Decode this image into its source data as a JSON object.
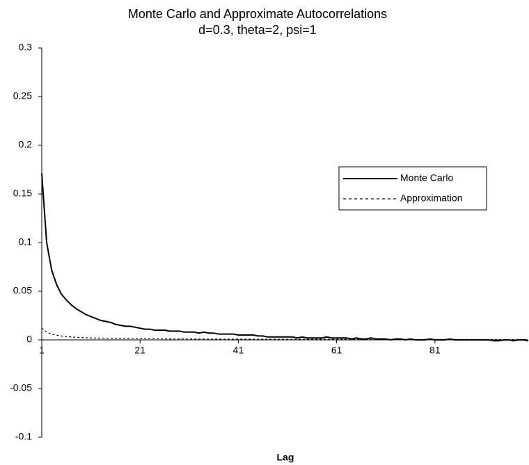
{
  "chart_data": {
    "type": "line",
    "title": "Monte Carlo and Approximate Autocorrelations",
    "subtitle": "d=0.3, theta=2, psi=1",
    "x_label": "Lag",
    "xlim": [
      1,
      100
    ],
    "xticks": [
      1,
      21,
      41,
      61,
      81
    ],
    "ylim": [
      -0.1,
      0.3
    ],
    "yticks": [
      0.3,
      0.25,
      0.2,
      0.15,
      0.1,
      0.05,
      0,
      -0.05,
      -0.1
    ],
    "grid": false,
    "legend": "right",
    "x": [
      1,
      2,
      3,
      4,
      5,
      6,
      7,
      8,
      9,
      10,
      11,
      12,
      13,
      14,
      15,
      16,
      17,
      18,
      19,
      20,
      21,
      22,
      23,
      24,
      25,
      26,
      27,
      28,
      29,
      30,
      31,
      32,
      33,
      34,
      35,
      36,
      37,
      38,
      39,
      40,
      41,
      42,
      43,
      44,
      45,
      46,
      47,
      48,
      49,
      50,
      51,
      52,
      53,
      54,
      55,
      56,
      57,
      58,
      59,
      60,
      61,
      62,
      63,
      64,
      65,
      66,
      67,
      68,
      69,
      70,
      71,
      72,
      73,
      74,
      75,
      76,
      77,
      78,
      79,
      80,
      81,
      82,
      83,
      84,
      85,
      86,
      87,
      88,
      89,
      90,
      91,
      92,
      93,
      94,
      95,
      96,
      97,
      98,
      99,
      100
    ],
    "series": [
      {
        "name": "Monte Carlo",
        "color": "#000000",
        "dash": "solid",
        "values": [
          0.171,
          0.1,
          0.072,
          0.057,
          0.047,
          0.041,
          0.036,
          0.032,
          0.029,
          0.026,
          0.024,
          0.022,
          0.02,
          0.019,
          0.018,
          0.016,
          0.015,
          0.014,
          0.014,
          0.013,
          0.012,
          0.011,
          0.011,
          0.01,
          0.01,
          0.01,
          0.009,
          0.009,
          0.009,
          0.008,
          0.008,
          0.008,
          0.007,
          0.008,
          0.007,
          0.007,
          0.006,
          0.006,
          0.006,
          0.006,
          0.005,
          0.005,
          0.005,
          0.005,
          0.004,
          0.004,
          0.003,
          0.003,
          0.003,
          0.003,
          0.003,
          0.003,
          0.002,
          0.003,
          0.002,
          0.002,
          0.002,
          0.002,
          0.003,
          0.002,
          0.002,
          0.002,
          0.002,
          0.001,
          0.002,
          0.001,
          0.001,
          0.002,
          0.001,
          0.001,
          0.001,
          0,
          0.001,
          0.001,
          0,
          0.001,
          0,
          0,
          0,
          0.001,
          0,
          0,
          0,
          0.001,
          0,
          0,
          0,
          0,
          0,
          0,
          0,
          0,
          -0.001,
          -0.001,
          0,
          0,
          -0.001,
          0,
          0,
          -0.001
        ]
      },
      {
        "name": "Approximation",
        "color": "#000000",
        "dash": "dashed",
        "values": [
          0.012,
          0.008,
          0.006,
          0.005,
          0.004,
          0.0035,
          0.003,
          0.0027,
          0.0024,
          0.0022,
          0.002,
          0.0019,
          0.0018,
          0.0017,
          0.0016,
          0.0015,
          0.0014,
          0.0014,
          0.0013,
          0.0013,
          0.0012,
          0.0012,
          0.0011,
          0.0011,
          0.0011,
          0.001,
          0.001,
          0.001,
          0.001,
          0.001,
          0.0009,
          0.0009,
          0.0009,
          0.0009,
          0.0009,
          0.0008,
          0.0008,
          0.0008,
          0.0008,
          0.0008,
          0.0008,
          0.0008,
          0.0007,
          0.0007,
          0.0007,
          0.0007,
          0.0007,
          0.0007,
          0.0007,
          0.0007,
          0.0007,
          0.0006,
          0.0006,
          0.0006,
          0.0006,
          0.0006,
          0.0006,
          0.0006,
          0.0006,
          0.0006,
          0.0006,
          0.0006,
          0.0006,
          0.0006,
          0.0006,
          0.0005,
          0.0005,
          0.0005,
          0.0005,
          0.0005,
          0.0005,
          0.0005,
          0.0005,
          0.0005,
          0.0005,
          0.0005,
          0.0005,
          0.0005,
          0.0005,
          0.0005,
          0.0005,
          0.0005,
          0.0005,
          0.0005,
          0.0005,
          0.0005,
          0.0005,
          0.0005,
          0.0005,
          0.0005,
          0.0004,
          0.0004,
          0.0004,
          0.0004,
          0.0004,
          0.0004,
          0.0004,
          0.0004,
          0.0004,
          0.0004
        ]
      }
    ]
  }
}
